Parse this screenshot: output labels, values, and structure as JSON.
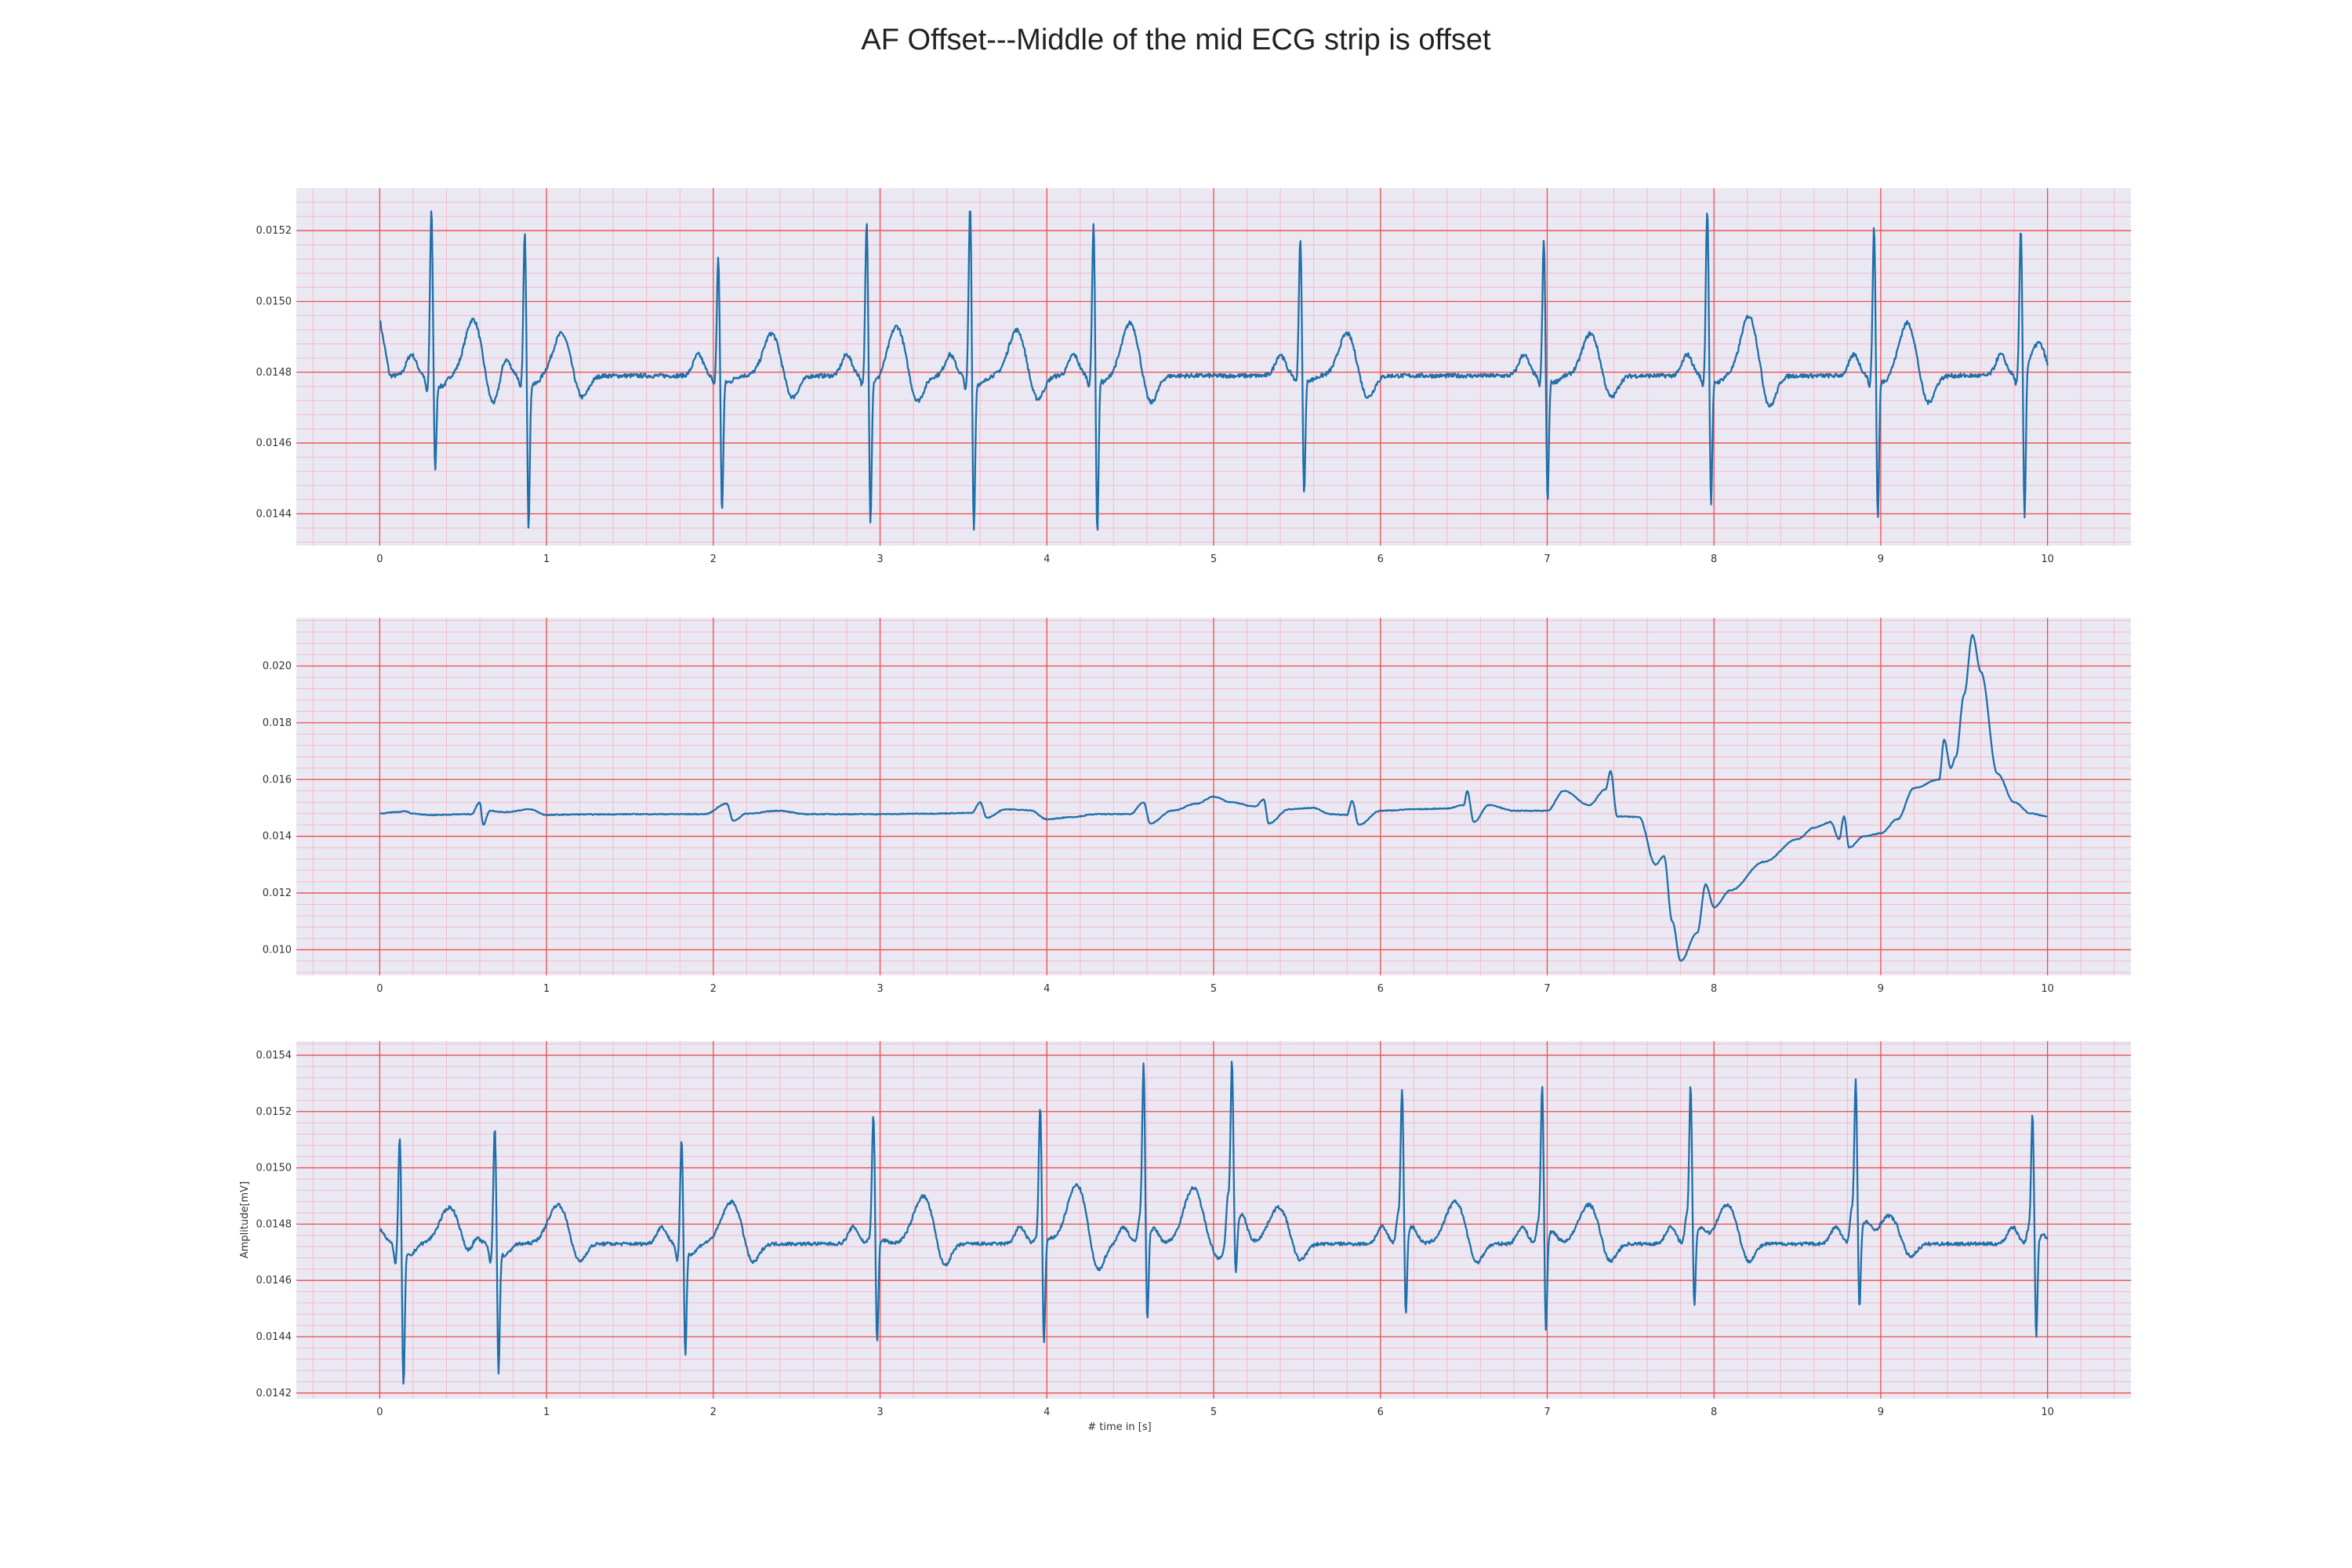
{
  "figure_title": "AF Offset---Middle of the mid ECG strip is offset",
  "colors": {
    "background": "#eae9f3",
    "major_grid": "#ee4b4b",
    "minor_grid": "#f5b9c8",
    "trace": "#1f6fa8"
  },
  "chart_data": [
    {
      "type": "line",
      "title": "",
      "xlabel": "",
      "ylabel": "",
      "xlim": [
        -0.5,
        10.5
      ],
      "ylim": [
        0.01431,
        0.01532
      ],
      "xticks": [
        "0",
        "1",
        "2",
        "3",
        "4",
        "5",
        "6",
        "7",
        "8",
        "9",
        "10"
      ],
      "yticks": [
        "0.0144",
        "0.0146",
        "0.0148",
        "0.0150",
        "0.0152"
      ],
      "grid": true,
      "series": [
        {
          "baseline": 0.01479,
          "beats": [
            {
              "t": 0.31,
              "r": 0.01527,
              "s": 0.01452,
              "q": 0.01474,
              "t_amp": 0.00016,
              "t_w": 0.05,
              "t_off": 0.25
            },
            {
              "t": 0.87,
              "r": 0.0152,
              "s": 0.01436,
              "q": 0.01475,
              "t_amp": 0.00012,
              "t_w": 0.05,
              "t_off": 0.22
            },
            {
              "t": 2.03,
              "r": 0.01513,
              "s": 0.0144,
              "q": 0.01476,
              "t_amp": 0.00012,
              "t_w": 0.05,
              "t_off": 0.32
            },
            {
              "t": 2.92,
              "r": 0.01523,
              "s": 0.01437,
              "q": 0.01476,
              "t_amp": 0.00014,
              "t_w": 0.05,
              "t_off": 0.18
            },
            {
              "t": 3.54,
              "r": 0.01528,
              "s": 0.01435,
              "q": 0.01475,
              "t_amp": 0.00013,
              "t_w": 0.05,
              "t_off": 0.28
            },
            {
              "t": 4.28,
              "r": 0.01523,
              "s": 0.01434,
              "q": 0.01476,
              "t_amp": 0.00015,
              "t_w": 0.05,
              "t_off": 0.22
            },
            {
              "t": 5.52,
              "r": 0.01518,
              "s": 0.01445,
              "q": 0.01477,
              "t_amp": 0.00012,
              "t_w": 0.05,
              "t_off": 0.28
            },
            {
              "t": 6.98,
              "r": 0.01518,
              "s": 0.01443,
              "q": 0.01476,
              "t_amp": 0.00012,
              "t_w": 0.05,
              "t_off": 0.28
            },
            {
              "t": 7.96,
              "r": 0.01527,
              "s": 0.01442,
              "q": 0.01476,
              "t_amp": 0.00017,
              "t_w": 0.05,
              "t_off": 0.25
            },
            {
              "t": 8.96,
              "r": 0.01522,
              "s": 0.01438,
              "q": 0.01476,
              "t_amp": 0.00015,
              "t_w": 0.05,
              "t_off": 0.2
            },
            {
              "t": 9.84,
              "r": 0.0152,
              "s": 0.01436,
              "q": 0.01476,
              "t_amp": 0.0001,
              "t_w": 0.05,
              "t_off": 0.1
            }
          ],
          "t_end": 10.0,
          "start_value": 0.01495
        }
      ]
    },
    {
      "type": "line",
      "title": "",
      "xlabel": "",
      "ylabel": "",
      "xlim": [
        -0.5,
        10.5
      ],
      "ylim": [
        0.0091,
        0.0217
      ],
      "xticks": [
        "0",
        "1",
        "2",
        "3",
        "4",
        "5",
        "6",
        "7",
        "8",
        "9",
        "10"
      ],
      "yticks": [
        "0.010",
        "0.012",
        "0.014",
        "0.016",
        "0.018",
        "0.020"
      ],
      "grid": true,
      "series": [
        {
          "points": [
            [
              0.0,
              0.0148
            ],
            [
              0.1,
              0.01485
            ],
            [
              0.15,
              0.01488
            ],
            [
              0.2,
              0.0148
            ],
            [
              0.3,
              0.01475
            ],
            [
              0.55,
              0.01478
            ],
            [
              0.6,
              0.0152
            ],
            [
              0.62,
              0.0144
            ],
            [
              0.66,
              0.0149
            ],
            [
              0.75,
              0.01485
            ],
            [
              0.9,
              0.01495
            ],
            [
              1.0,
              0.01475
            ],
            [
              1.2,
              0.01477
            ],
            [
              1.6,
              0.01478
            ],
            [
              1.95,
              0.01478
            ],
            [
              2.08,
              0.01515
            ],
            [
              2.12,
              0.01455
            ],
            [
              2.2,
              0.0148
            ],
            [
              2.4,
              0.0149
            ],
            [
              2.55,
              0.01478
            ],
            [
              3.0,
              0.01478
            ],
            [
              3.3,
              0.0148
            ],
            [
              3.55,
              0.01482
            ],
            [
              3.6,
              0.0152
            ],
            [
              3.64,
              0.01465
            ],
            [
              3.75,
              0.01495
            ],
            [
              3.9,
              0.01492
            ],
            [
              4.0,
              0.0146
            ],
            [
              4.15,
              0.01468
            ],
            [
              4.3,
              0.01478
            ],
            [
              4.5,
              0.01478
            ],
            [
              4.58,
              0.0152
            ],
            [
              4.62,
              0.01445
            ],
            [
              4.75,
              0.0149
            ],
            [
              4.9,
              0.01515
            ],
            [
              5.0,
              0.0154
            ],
            [
              5.1,
              0.0152
            ],
            [
              5.25,
              0.01505
            ],
            [
              5.3,
              0.0153
            ],
            [
              5.33,
              0.01445
            ],
            [
              5.45,
              0.01495
            ],
            [
              5.6,
              0.015
            ],
            [
              5.7,
              0.01478
            ],
            [
              5.8,
              0.01475
            ],
            [
              5.83,
              0.01525
            ],
            [
              5.87,
              0.0144
            ],
            [
              6.0,
              0.0149
            ],
            [
              6.2,
              0.01495
            ],
            [
              6.4,
              0.01498
            ],
            [
              6.5,
              0.0151
            ],
            [
              6.52,
              0.0156
            ],
            [
              6.56,
              0.0145
            ],
            [
              6.65,
              0.0151
            ],
            [
              6.8,
              0.0149
            ],
            [
              7.0,
              0.0149
            ],
            [
              7.1,
              0.0156
            ],
            [
              7.25,
              0.0151
            ],
            [
              7.35,
              0.01565
            ],
            [
              7.38,
              0.0163
            ],
            [
              7.42,
              0.0147
            ],
            [
              7.55,
              0.01468
            ],
            [
              7.65,
              0.013
            ],
            [
              7.7,
              0.0133
            ],
            [
              7.75,
              0.011
            ],
            [
              7.8,
              0.0096
            ],
            [
              7.9,
              0.0106
            ],
            [
              7.95,
              0.0123
            ],
            [
              8.0,
              0.0115
            ],
            [
              8.1,
              0.0121
            ],
            [
              8.3,
              0.0131
            ],
            [
              8.5,
              0.0139
            ],
            [
              8.6,
              0.0143
            ],
            [
              8.7,
              0.0145
            ],
            [
              8.75,
              0.0139
            ],
            [
              8.78,
              0.0147
            ],
            [
              8.81,
              0.0136
            ],
            [
              8.9,
              0.014
            ],
            [
              9.0,
              0.0141
            ],
            [
              9.1,
              0.0146
            ],
            [
              9.2,
              0.0157
            ],
            [
              9.35,
              0.016
            ],
            [
              9.38,
              0.0174
            ],
            [
              9.42,
              0.0164
            ],
            [
              9.45,
              0.0168
            ],
            [
              9.5,
              0.019
            ],
            [
              9.55,
              0.0211
            ],
            [
              9.6,
              0.0198
            ],
            [
              9.7,
              0.0162
            ],
            [
              9.8,
              0.0152
            ],
            [
              9.9,
              0.0148
            ],
            [
              10.0,
              0.0147
            ]
          ]
        }
      ]
    },
    {
      "type": "line",
      "title": "",
      "xlabel": "# time in [s]",
      "ylabel": "Amplitude[mV]",
      "xlim": [
        -0.5,
        10.5
      ],
      "ylim": [
        0.01418,
        0.01545
      ],
      "xticks": [
        "0",
        "1",
        "2",
        "3",
        "4",
        "5",
        "6",
        "7",
        "8",
        "9",
        "10"
      ],
      "yticks": [
        "0.0142",
        "0.0144",
        "0.0146",
        "0.0148",
        "0.0150",
        "0.0152",
        "0.0154"
      ],
      "grid": true,
      "series": [
        {
          "baseline": 0.01473,
          "beats": [
            {
              "t": 0.12,
              "r": 0.01512,
              "s": 0.01423,
              "q": 0.01466,
              "t_amp": 0.00013,
              "t_w": 0.06,
              "t_off": 0.3
            },
            {
              "t": 0.69,
              "r": 0.01516,
              "s": 0.01428,
              "q": 0.01466,
              "t_amp": 0.00014,
              "t_w": 0.06,
              "t_off": 0.38
            },
            {
              "t": 1.81,
              "r": 0.01511,
              "s": 0.01434,
              "q": 0.01467,
              "t_amp": 0.00015,
              "t_w": 0.06,
              "t_off": 0.3
            },
            {
              "t": 2.96,
              "r": 0.01519,
              "s": 0.01436,
              "q": 0.01475,
              "t_amp": 0.00017,
              "t_w": 0.06,
              "t_off": 0.3
            },
            {
              "t": 3.96,
              "r": 0.01522,
              "s": 0.01436,
              "q": 0.01475,
              "t_amp": 0.00021,
              "t_w": 0.06,
              "t_off": 0.22
            },
            {
              "t": 4.58,
              "r": 0.01536,
              "s": 0.01442,
              "q": 0.01482,
              "t_amp": 0.0002,
              "t_w": 0.06,
              "t_off": 0.3
            },
            {
              "t": 5.11,
              "r": 0.01537,
              "s": 0.01456,
              "q": 0.0149,
              "t_amp": 0.00013,
              "t_w": 0.06,
              "t_off": 0.28
            },
            {
              "t": 6.13,
              "r": 0.01527,
              "s": 0.01444,
              "q": 0.01483,
              "t_amp": 0.00015,
              "t_w": 0.06,
              "t_off": 0.32
            },
            {
              "t": 6.97,
              "r": 0.01529,
              "s": 0.01439,
              "q": 0.0148,
              "t_amp": 0.00014,
              "t_w": 0.06,
              "t_off": 0.28
            },
            {
              "t": 7.86,
              "r": 0.01528,
              "s": 0.01447,
              "q": 0.01482,
              "t_amp": 0.00014,
              "t_w": 0.06,
              "t_off": 0.22
            },
            {
              "t": 8.85,
              "r": 0.0153,
              "s": 0.01445,
              "q": 0.01485,
              "t_amp": 0.0001,
              "t_w": 0.06,
              "t_off": 0.2
            },
            {
              "t": 9.91,
              "r": 0.01519,
              "s": 0.01437,
              "q": 0.01478,
              "t_amp": 0.0,
              "t_w": 0.06,
              "t_off": 0.2
            }
          ],
          "t_end": 10.0,
          "start_value": 0.01472
        }
      ]
    }
  ]
}
